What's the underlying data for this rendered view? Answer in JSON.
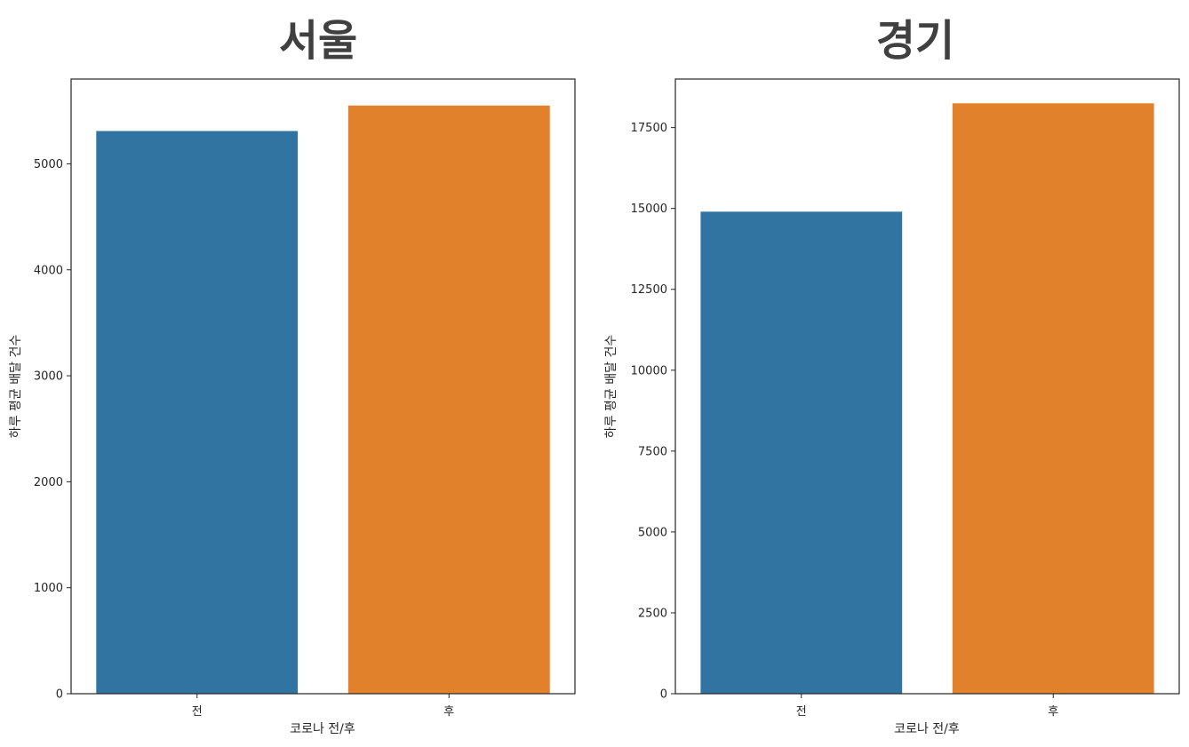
{
  "chart_data": [
    {
      "type": "bar",
      "title": "서울",
      "xlabel": "코로나 전/후",
      "ylabel": "하루 평균 배달 건수",
      "categories": [
        "전",
        "후"
      ],
      "values": [
        5310,
        5550
      ],
      "colors": [
        "#3274a1",
        "#e1812c"
      ],
      "ylim": [
        0,
        5800
      ],
      "yticks": [
        0,
        1000,
        2000,
        3000,
        4000,
        5000
      ],
      "grid": false
    },
    {
      "type": "bar",
      "title": "경기",
      "xlabel": "코로나 전/후",
      "ylabel": "하루 평균 배달 건수",
      "categories": [
        "전",
        "후"
      ],
      "values": [
        14900,
        18250
      ],
      "colors": [
        "#3274a1",
        "#e1812c"
      ],
      "ylim": [
        0,
        19000
      ],
      "yticks": [
        0,
        2500,
        5000,
        7500,
        10000,
        12500,
        15000,
        17500
      ],
      "grid": false
    }
  ]
}
